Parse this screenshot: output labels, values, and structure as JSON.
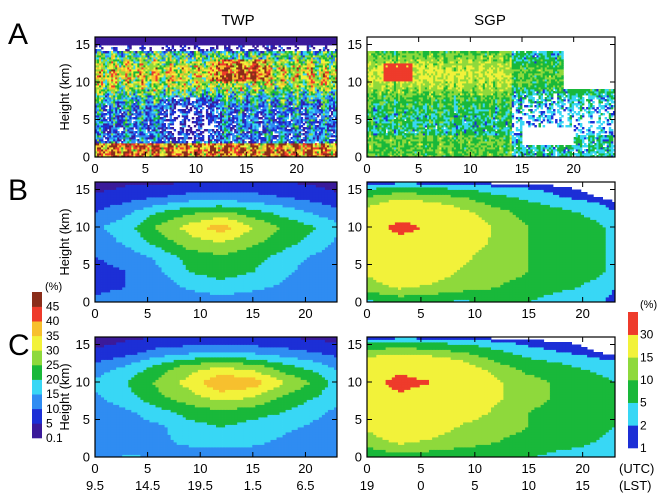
{
  "figure": {
    "column_titles": [
      "TWP",
      "SGP"
    ],
    "panel_labels": [
      "A",
      "B",
      "C"
    ]
  },
  "chart_data": [
    {
      "type": "heatmap",
      "panel": "A",
      "site": "TWP",
      "title": "TWP",
      "ylabel": "Height (km)",
      "xlabel": "",
      "xlim": [
        0,
        24
      ],
      "ylim": [
        0,
        16
      ],
      "x_ticks": [
        "0",
        "5",
        "10",
        "15",
        "20"
      ],
      "y_ticks": [
        "0",
        "5",
        "10",
        "15"
      ],
      "description_values": "high-resolution cloud occurrence; frequent cloud 0-2 km and 8-14 km, local maxima near 11-12 km at 10-16 h"
    },
    {
      "type": "heatmap",
      "panel": "A",
      "site": "SGP",
      "title": "SGP",
      "ylabel": "",
      "xlabel": "",
      "xlim": [
        0,
        24
      ],
      "ylim": [
        0,
        16
      ],
      "x_ticks": [
        "0",
        "5",
        "10",
        "15",
        "20"
      ],
      "y_ticks": [
        "0",
        "5",
        "10",
        "15"
      ],
      "description_values": "high-resolution cloud occurrence; maximum near 11 km at 2-4 h, cloud-free above 14 km"
    },
    {
      "type": "heatmap",
      "panel": "B",
      "site": "TWP",
      "ylabel": "Height (km)",
      "xlim": [
        0,
        23
      ],
      "ylim": [
        0,
        16
      ],
      "x_ticks": [
        "0",
        "5",
        "10",
        "15",
        "20"
      ],
      "y_ticks": [
        "0",
        "5",
        "10",
        "15"
      ],
      "levels": [
        0.1,
        5,
        10,
        15,
        20,
        25,
        30,
        35,
        40,
        45
      ],
      "x": [
        0,
        3,
        6,
        9,
        12,
        15,
        18,
        21,
        23
      ],
      "y": [
        0,
        2,
        4,
        6,
        8,
        10,
        12,
        14,
        16
      ],
      "z": [
        [
          12,
          14,
          12,
          11,
          12,
          12,
          11,
          12,
          12
        ],
        [
          8,
          10,
          12,
          16,
          18,
          16,
          14,
          12,
          10
        ],
        [
          8,
          10,
          14,
          20,
          22,
          20,
          16,
          12,
          10
        ],
        [
          10,
          12,
          16,
          22,
          24,
          22,
          18,
          14,
          12
        ],
        [
          12,
          16,
          22,
          28,
          30,
          26,
          22,
          18,
          14
        ],
        [
          14,
          18,
          26,
          32,
          38,
          30,
          24,
          20,
          16
        ],
        [
          10,
          14,
          20,
          24,
          26,
          22,
          18,
          14,
          12
        ],
        [
          6,
          8,
          10,
          12,
          12,
          12,
          10,
          8,
          6
        ],
        [
          2,
          4,
          4,
          5,
          5,
          5,
          5,
          4,
          3
        ]
      ]
    },
    {
      "type": "heatmap",
      "panel": "B",
      "site": "SGP",
      "ylabel": "",
      "xlim": [
        0,
        23
      ],
      "ylim": [
        0,
        16
      ],
      "x_ticks": [
        "0",
        "5",
        "10",
        "15",
        "20"
      ],
      "y_ticks": [
        "0",
        "5",
        "10",
        "15"
      ],
      "levels": [
        1,
        2,
        5,
        10,
        15,
        30
      ],
      "x": [
        0,
        3,
        6,
        9,
        12,
        15,
        18,
        21,
        23
      ],
      "y": [
        0,
        2,
        4,
        6,
        8,
        10,
        12,
        14,
        16
      ],
      "z": [
        [
          4,
          6,
          5,
          4,
          6,
          5,
          2,
          3,
          1
        ],
        [
          12,
          16,
          14,
          12,
          10,
          8,
          6,
          4,
          2
        ],
        [
          16,
          20,
          18,
          14,
          12,
          10,
          8,
          6,
          4
        ],
        [
          18,
          22,
          20,
          16,
          12,
          10,
          8,
          6,
          4
        ],
        [
          20,
          26,
          24,
          18,
          14,
          10,
          8,
          6,
          4
        ],
        [
          24,
          34,
          28,
          20,
          14,
          10,
          8,
          6,
          4
        ],
        [
          18,
          24,
          22,
          16,
          12,
          8,
          6,
          4,
          2
        ],
        [
          10,
          14,
          12,
          10,
          6,
          4,
          2,
          1,
          0.5
        ],
        [
          0.5,
          1,
          1,
          0.5,
          0.5,
          0.5,
          0.5,
          0.5,
          0.5
        ]
      ]
    },
    {
      "type": "heatmap",
      "panel": "C",
      "site": "TWP",
      "ylabel": "Height (km)",
      "xlabel": "",
      "xlim": [
        0,
        23
      ],
      "ylim": [
        0,
        16
      ],
      "x_ticks": [
        "0",
        "5",
        "10",
        "15",
        "20"
      ],
      "x_ticks_lst": [
        "9.5",
        "14.5",
        "19.5",
        "1.5",
        "6.5"
      ],
      "y_ticks": [
        "0",
        "5",
        "10",
        "15"
      ],
      "levels": [
        0.1,
        5,
        10,
        15,
        20,
        25,
        30,
        35,
        40,
        45
      ],
      "x": [
        0,
        3,
        6,
        9,
        12,
        15,
        18,
        21,
        23
      ],
      "y": [
        0,
        2,
        4,
        6,
        8,
        10,
        12,
        14,
        16
      ],
      "z": [
        [
          12,
          16,
          14,
          12,
          12,
          12,
          12,
          12,
          12
        ],
        [
          10,
          12,
          14,
          16,
          16,
          16,
          14,
          12,
          10
        ],
        [
          10,
          12,
          14,
          18,
          20,
          18,
          16,
          14,
          12
        ],
        [
          12,
          14,
          18,
          22,
          24,
          22,
          20,
          16,
          14
        ],
        [
          14,
          18,
          24,
          28,
          32,
          30,
          24,
          20,
          16
        ],
        [
          16,
          20,
          26,
          32,
          40,
          38,
          30,
          24,
          18
        ],
        [
          12,
          16,
          22,
          28,
          30,
          28,
          22,
          18,
          14
        ],
        [
          6,
          8,
          12,
          14,
          14,
          14,
          12,
          10,
          8
        ],
        [
          2,
          4,
          5,
          5,
          6,
          5,
          5,
          4,
          3
        ]
      ]
    },
    {
      "type": "heatmap",
      "panel": "C",
      "site": "SGP",
      "ylabel": "",
      "xlabel": "(UTC)",
      "xlabel2": "(LST)",
      "xlim": [
        0,
        23
      ],
      "ylim": [
        0,
        16
      ],
      "x_ticks": [
        "0",
        "5",
        "10",
        "15",
        "20"
      ],
      "x_ticks_lst": [
        "19",
        "0",
        "5",
        "10",
        "15"
      ],
      "y_ticks": [
        "0",
        "5",
        "10",
        "15"
      ],
      "levels": [
        1,
        2,
        5,
        10,
        15,
        30
      ],
      "x": [
        0,
        3,
        6,
        9,
        12,
        15,
        18,
        21,
        23
      ],
      "y": [
        0,
        2,
        4,
        6,
        8,
        10,
        12,
        14,
        16
      ],
      "z": [
        [
          6,
          8,
          7,
          6,
          6,
          5,
          4,
          4,
          3
        ],
        [
          12,
          16,
          14,
          12,
          10,
          8,
          6,
          5,
          4
        ],
        [
          16,
          20,
          18,
          14,
          12,
          10,
          8,
          6,
          5
        ],
        [
          18,
          24,
          22,
          18,
          14,
          10,
          8,
          6,
          5
        ],
        [
          22,
          28,
          24,
          20,
          16,
          12,
          9,
          7,
          5
        ],
        [
          26,
          34,
          30,
          24,
          16,
          12,
          9,
          7,
          5
        ],
        [
          20,
          26,
          24,
          18,
          12,
          8,
          6,
          4,
          3
        ],
        [
          12,
          14,
          12,
          10,
          6,
          3,
          2,
          1,
          0.5
        ],
        [
          0.5,
          1,
          1,
          0.5,
          0.5,
          0.5,
          0.5,
          0.5,
          0.5
        ]
      ]
    }
  ],
  "colorbars": [
    {
      "site": "TWP",
      "unit": "(%)",
      "tick_labels": [
        "45",
        "40",
        "35",
        "30",
        "25",
        "20",
        "15",
        "10",
        "5",
        "0.1"
      ],
      "colors": [
        "#3b1a9a",
        "#1c2fd6",
        "#2f8cf2",
        "#38d7f5",
        "#19b83a",
        "#8ed93c",
        "#f2f23a",
        "#f7c02e",
        "#ee3b2b",
        "#8a2d1a"
      ]
    },
    {
      "site": "SGP",
      "unit": "(%)",
      "tick_labels": [
        "30",
        "15",
        "10",
        "5",
        "2",
        "1"
      ],
      "colors": [
        "#1c2fd6",
        "#38d7f5",
        "#19b83a",
        "#8ed93c",
        "#f2f23a",
        "#ee3b2b"
      ]
    }
  ]
}
